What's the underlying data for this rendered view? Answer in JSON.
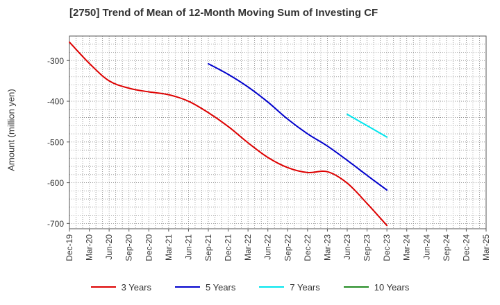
{
  "chart_data": {
    "type": "line",
    "title": "[2750]  Trend of Mean of 12-Month Moving Sum of Investing CF",
    "xlabel": "",
    "ylabel": "Amount (million yen)",
    "categories": [
      "Dec-19",
      "Mar-20",
      "Jun-20",
      "Sep-20",
      "Dec-20",
      "Mar-21",
      "Jun-21",
      "Sep-21",
      "Dec-21",
      "Mar-22",
      "Jun-22",
      "Sep-22",
      "Dec-22",
      "Mar-23",
      "Jun-23",
      "Sep-23",
      "Dec-23",
      "Mar-24",
      "Jun-24",
      "Sep-24",
      "Dec-24",
      "Mar-25"
    ],
    "yticks": [
      -300,
      -400,
      -500,
      -600,
      -700
    ],
    "ylim": [
      -713,
      -240
    ],
    "grid": true,
    "legend_position": "bottom",
    "series": [
      {
        "name": "3 Years",
        "color": "#dd0000",
        "values": [
          -255,
          -307,
          -350,
          -368,
          -377,
          -384,
          -400,
          -428,
          -462,
          -502,
          -538,
          -563,
          -575,
          -573,
          -601,
          -651,
          -705,
          null,
          null,
          null,
          null,
          null
        ]
      },
      {
        "name": "5 Years",
        "color": "#0000cc",
        "values": [
          null,
          null,
          null,
          null,
          null,
          null,
          null,
          -308,
          -334,
          -365,
          -402,
          -444,
          -480,
          -510,
          -545,
          -582,
          -618,
          null,
          null,
          null,
          null,
          null
        ]
      },
      {
        "name": "7 Years",
        "color": "#00e5ee",
        "values": [
          null,
          null,
          null,
          null,
          null,
          null,
          null,
          null,
          null,
          null,
          null,
          null,
          null,
          null,
          -432,
          -460,
          -488,
          null,
          null,
          null,
          null,
          null
        ]
      },
      {
        "name": "10 Years",
        "color": "#228b22",
        "values": [
          null,
          null,
          null,
          null,
          null,
          null,
          null,
          null,
          null,
          null,
          null,
          null,
          null,
          null,
          null,
          null,
          null,
          null,
          null,
          null,
          null,
          null
        ]
      }
    ]
  }
}
